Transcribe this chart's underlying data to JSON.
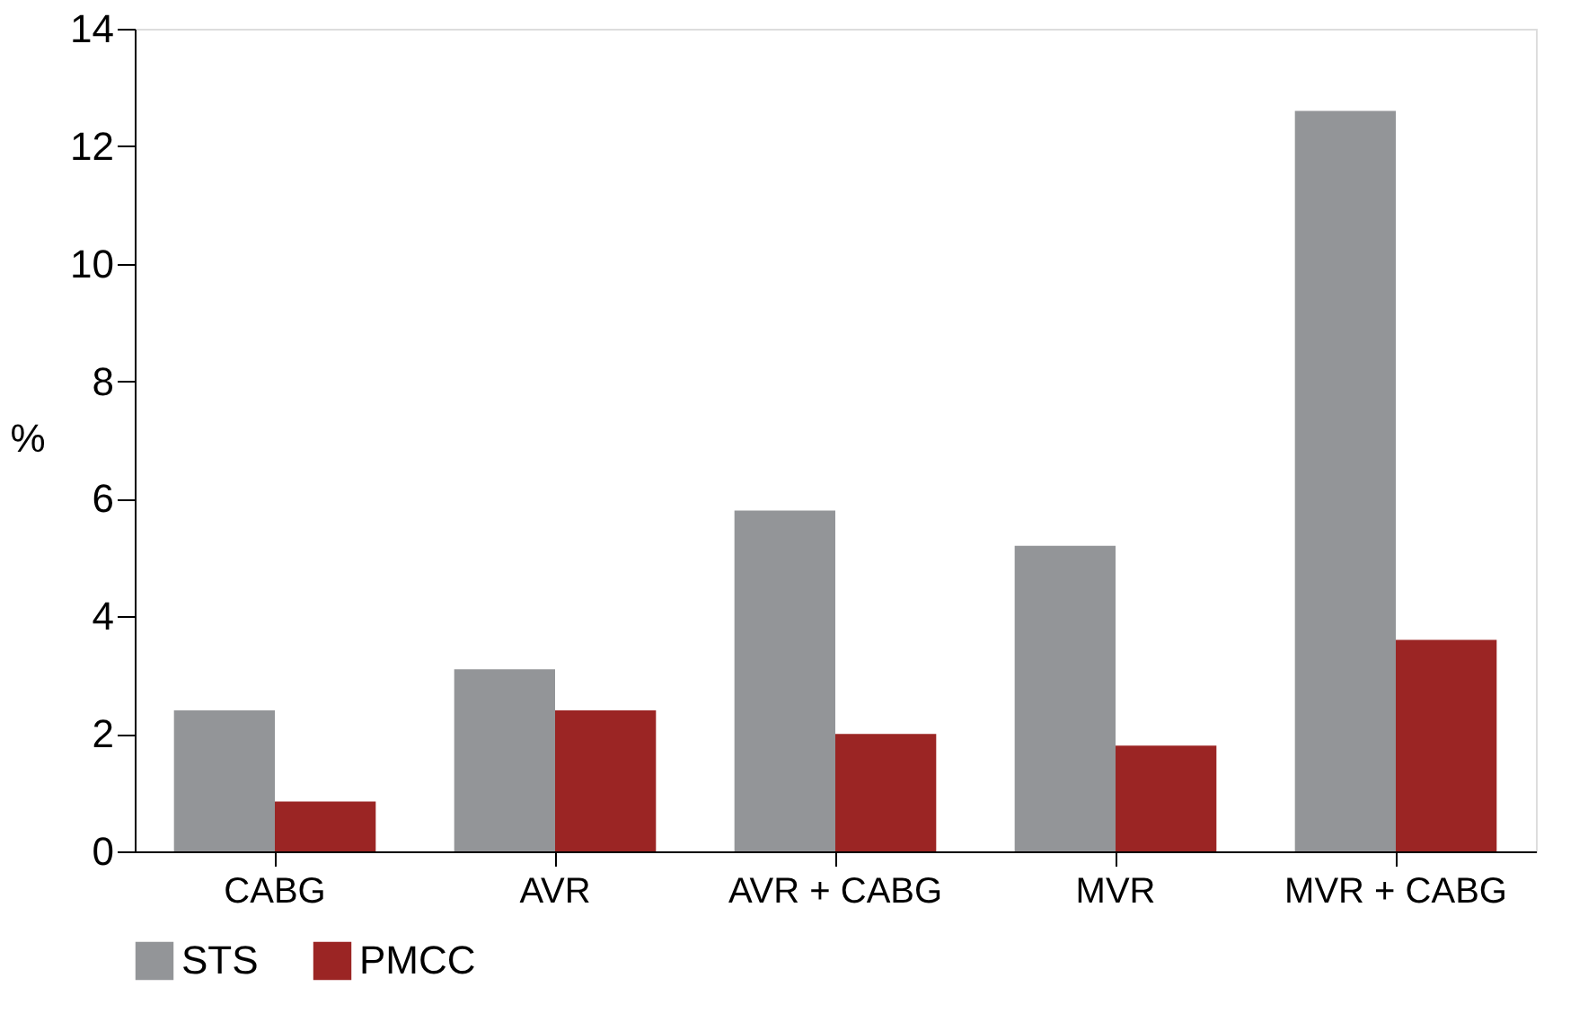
{
  "chart_data": {
    "type": "bar",
    "ylabel": "%",
    "categories": [
      "CABG",
      "AVR",
      "AVR + CABG",
      "MVR",
      "MVR + CABG"
    ],
    "series": [
      {
        "name": "STS",
        "color": "#939598",
        "values": [
          2.4,
          3.1,
          5.8,
          5.2,
          12.6
        ]
      },
      {
        "name": "PMCC",
        "color": "#9b2524",
        "values": [
          0.85,
          2.4,
          2.0,
          1.8,
          3.6
        ]
      }
    ],
    "ylim": [
      0,
      14
    ],
    "yticks": [
      0,
      2,
      4,
      6,
      8,
      10,
      12,
      14
    ],
    "grid": false,
    "legend": "bottom"
  }
}
